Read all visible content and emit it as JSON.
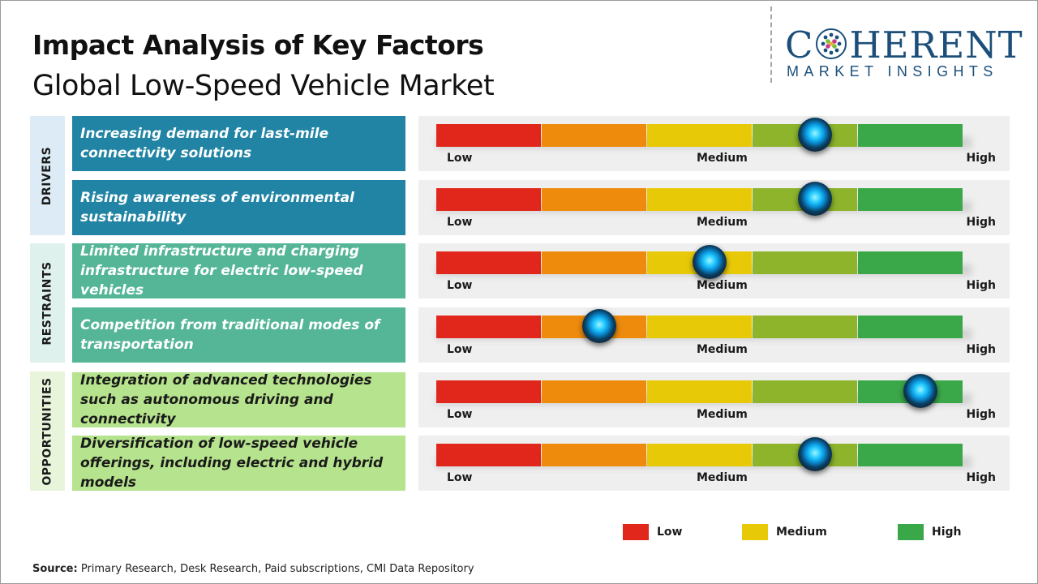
{
  "header": {
    "title": "Impact Analysis of Key Factors",
    "subtitle": "Global Low-Speed Vehicle Market"
  },
  "logo": {
    "name_left": "C",
    "name_right": "HERENT",
    "tagline": "MARKET INSIGHTS"
  },
  "scale": {
    "low_label": "Low",
    "medium_label": "Medium",
    "high_label": "High",
    "segment_colors": [
      "#e1261c",
      "#ee8b0d",
      "#e8c908",
      "#8db42b",
      "#3aa849"
    ]
  },
  "categories": [
    {
      "label": "DRIVERS",
      "color": "#dcebf5"
    },
    {
      "label": "RESTRAINTS",
      "color": "#dff1ec"
    },
    {
      "label": "OPPORTUNITIES",
      "color": "#e8f5db"
    }
  ],
  "factors": [
    {
      "text": "Increasing demand for last-mile connectivity solutions",
      "category": "DRIVERS",
      "impact": 0.72
    },
    {
      "text": "Rising awareness of environmental sustainability",
      "category": "DRIVERS",
      "impact": 0.72
    },
    {
      "text": "Limited infrastructure and charging infrastructure for electric low-speed vehicles",
      "category": "RESTRAINTS",
      "impact": 0.52
    },
    {
      "text": "Competition from traditional modes of transportation",
      "category": "RESTRAINTS",
      "impact": 0.31
    },
    {
      "text": "Integration of advanced technologies such as autonomous driving and connectivity",
      "category": "OPPORTUNITIES",
      "impact": 0.92
    },
    {
      "text": "Diversification of low-speed vehicle offerings, including electric and hybrid models",
      "category": "OPPORTUNITIES",
      "impact": 0.72
    }
  ],
  "legend": [
    {
      "label": "Low",
      "color": "#e1261c"
    },
    {
      "label": "Medium",
      "color": "#e8c908"
    },
    {
      "label": "High",
      "color": "#3aa849"
    }
  ],
  "source": {
    "label": "Source:",
    "text": "Primary Research, Desk Research, Paid subscriptions, CMI Data Repository"
  }
}
